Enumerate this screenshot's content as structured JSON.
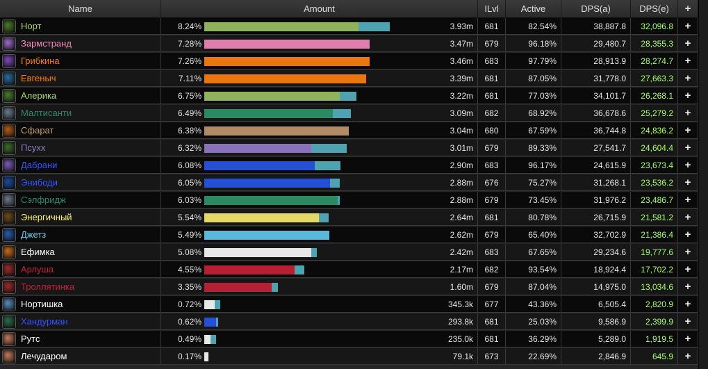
{
  "header": {
    "name": "Name",
    "amount": "Amount",
    "ilvl": "ILvl",
    "active": "Active",
    "dps_a": "DPS(a)",
    "dps_e": "DPS(e)",
    "plus": "+"
  },
  "rows": [
    {
      "name": "Норт",
      "name_color": "#abd473",
      "pct": "8.24%",
      "amount": "3.93m",
      "ilvl": "681",
      "active": "82.54%",
      "dps_a": "38,887.8",
      "dps_e": "32,096.8",
      "bar_main": 0.824,
      "bar_extra": 0.166,
      "bar_color": "#8fb25a",
      "icon": "hunter-icon",
      "icon_color": "#4a7a2a"
    },
    {
      "name": "Зармстранд",
      "name_color": "#f58cba",
      "pct": "7.28%",
      "amount": "3.47m",
      "ilvl": "679",
      "active": "96.18%",
      "dps_a": "29,480.7",
      "dps_e": "28,355.3",
      "bar_main": 0.883,
      "bar_extra": 0.0,
      "bar_color": "#e07fad",
      "icon": "paladin-icon",
      "icon_color": "#9a6ac8"
    },
    {
      "name": "Грибкина",
      "name_color": "#ff7d0a",
      "pct": "7.26%",
      "amount": "3.46m",
      "ilvl": "683",
      "active": "97.79%",
      "dps_a": "28,913.9",
      "dps_e": "28,274.7",
      "bar_main": 0.88,
      "bar_extra": 0.0,
      "bar_color": "#e9760f",
      "icon": "druid-icon",
      "icon_color": "#7a4ab8"
    },
    {
      "name": "Евгеныч",
      "name_color": "#ff7d0a",
      "pct": "7.11%",
      "amount": "3.39m",
      "ilvl": "681",
      "active": "87.05%",
      "dps_a": "31,778.0",
      "dps_e": "27,663.3",
      "bar_main": 0.863,
      "bar_extra": 0.0,
      "bar_color": "#e9760f",
      "icon": "moonkin-icon",
      "icon_color": "#2a6a9a"
    },
    {
      "name": "Алерика",
      "name_color": "#abd473",
      "pct": "6.75%",
      "amount": "3.22m",
      "ilvl": "681",
      "active": "77.03%",
      "dps_a": "34,101.7",
      "dps_e": "26,268.1",
      "bar_main": 0.724,
      "bar_extra": 0.09,
      "bar_color": "#8fb25a",
      "icon": "hunter-icon",
      "icon_color": "#4a7a2a"
    },
    {
      "name": "Малтисанти",
      "name_color": "#2e8b6e",
      "pct": "6.49%",
      "amount": "3.09m",
      "ilvl": "682",
      "active": "68.92%",
      "dps_a": "36,678.6",
      "dps_e": "25,279.2",
      "bar_main": 0.686,
      "bar_extra": 0.095,
      "bar_color": "#2a8a64",
      "icon": "wolf-icon",
      "icon_color": "#6a7a8a"
    },
    {
      "name": "Сфарат",
      "name_color": "#c79c6e",
      "pct": "6.38%",
      "amount": "3.04m",
      "ilvl": "680",
      "active": "67.59%",
      "dps_a": "36,744.8",
      "dps_e": "24,836.2",
      "bar_main": 0.77,
      "bar_extra": 0.0,
      "bar_color": "#b08c66",
      "icon": "warrior-icon",
      "icon_color": "#b05a1a"
    },
    {
      "name": "Псухх",
      "name_color": "#9482c9",
      "pct": "6.32%",
      "amount": "3.01m",
      "ilvl": "679",
      "active": "89.33%",
      "dps_a": "27,541.7",
      "dps_e": "24,604.4",
      "bar_main": 0.57,
      "bar_extra": 0.19,
      "bar_color": "#8a72bb",
      "icon": "warlock-icon",
      "icon_color": "#3a6a2a"
    },
    {
      "name": "Дабрани",
      "name_color": "#3355ff",
      "pct": "6.08%",
      "amount": "2.90m",
      "ilvl": "683",
      "active": "96.17%",
      "dps_a": "24,615.9",
      "dps_e": "23,673.4",
      "bar_main": 0.59,
      "bar_extra": 0.137,
      "bar_color": "#2450d8",
      "icon": "shaman-icon",
      "icon_color": "#7a5ab8"
    },
    {
      "name": "Энибоди",
      "name_color": "#3355ff",
      "pct": "6.05%",
      "amount": "2.88m",
      "ilvl": "676",
      "active": "75.27%",
      "dps_a": "31,268.1",
      "dps_e": "23,536.2",
      "bar_main": 0.67,
      "bar_extra": 0.05,
      "bar_color": "#2450d8",
      "icon": "lightning-icon",
      "icon_color": "#1a4a9a"
    },
    {
      "name": "Сэлфридж",
      "name_color": "#2e8b6e",
      "pct": "6.03%",
      "amount": "2.88m",
      "ilvl": "679",
      "active": "73.45%",
      "dps_a": "31,976.2",
      "dps_e": "23,486.7",
      "bar_main": 0.71,
      "bar_extra": 0.01,
      "bar_color": "#2a8a64",
      "icon": "wolf-icon",
      "icon_color": "#6a7a8a"
    },
    {
      "name": "Энергичный",
      "name_color": "#fff569",
      "pct": "5.54%",
      "amount": "2.64m",
      "ilvl": "681",
      "active": "80.78%",
      "dps_a": "26,715.9",
      "dps_e": "21,581.2",
      "bar_main": 0.61,
      "bar_extra": 0.05,
      "bar_color": "#e5d966",
      "icon": "rogue-icon",
      "icon_color": "#6a4a1a"
    },
    {
      "name": "Джетз",
      "name_color": "#69ccf0",
      "pct": "5.49%",
      "amount": "2.62m",
      "ilvl": "679",
      "active": "65.40%",
      "dps_a": "32,702.9",
      "dps_e": "21,386.4",
      "bar_main": 0.666,
      "bar_extra": 0.0,
      "bar_color": "#5bb8d8",
      "icon": "mage-icon",
      "icon_color": "#2a5aa8"
    },
    {
      "name": "Ефимка",
      "name_color": "#ffffff",
      "pct": "5.08%",
      "amount": "2.42m",
      "ilvl": "683",
      "active": "67.65%",
      "dps_a": "29,234.6",
      "dps_e": "19,777.6",
      "bar_main": 0.57,
      "bar_extra": 0.03,
      "bar_color": "#e8e8e8",
      "icon": "priest-icon",
      "icon_color": "#c06a1a"
    },
    {
      "name": "Арлуша",
      "name_color": "#c41f3b",
      "pct": "4.55%",
      "amount": "2.17m",
      "ilvl": "682",
      "active": "93.54%",
      "dps_a": "18,924.4",
      "dps_e": "17,702.2",
      "bar_main": 0.48,
      "bar_extra": 0.05,
      "bar_color": "#b52034",
      "icon": "deathknight-icon",
      "icon_color": "#9a2a2a"
    },
    {
      "name": "Троллятинка",
      "name_color": "#c41f3b",
      "pct": "3.35%",
      "amount": "1.60m",
      "ilvl": "679",
      "active": "87.04%",
      "dps_a": "14,975.0",
      "dps_e": "13,034.6",
      "bar_main": 0.36,
      "bar_extra": 0.035,
      "bar_color": "#b52034",
      "icon": "deathknight-icon",
      "icon_color": "#9a2a2a"
    },
    {
      "name": "Нортишка",
      "name_color": "#ffffff",
      "pct": "0.72%",
      "amount": "345.3k",
      "ilvl": "677",
      "active": "43.36%",
      "dps_a": "6,505.4",
      "dps_e": "2,820.9",
      "bar_main": 0.056,
      "bar_extra": 0.03,
      "bar_color": "#e8e8e8",
      "icon": "priest-icon",
      "icon_color": "#5a8ab8"
    },
    {
      "name": "Хандурман",
      "name_color": "#3355ff",
      "pct": "0.62%",
      "amount": "293.8k",
      "ilvl": "681",
      "active": "25.03%",
      "dps_a": "9,586.9",
      "dps_e": "2,399.9",
      "bar_main": 0.064,
      "bar_extra": 0.01,
      "bar_color": "#2450d8",
      "icon": "shaman-icon",
      "icon_color": "#2a6a4a"
    },
    {
      "name": "Рутс",
      "name_color": "#ffffff",
      "pct": "0.49%",
      "amount": "235.0k",
      "ilvl": "681",
      "active": "36.29%",
      "dps_a": "5,289.0",
      "dps_e": "1,919.5",
      "bar_main": 0.032,
      "bar_extra": 0.03,
      "bar_color": "#e8e8e8",
      "icon": "priest-icon",
      "icon_color": "#c07a5a"
    },
    {
      "name": "Лечударом",
      "name_color": "#ffffff",
      "pct": "0.17%",
      "amount": "79.1k",
      "ilvl": "673",
      "active": "22.69%",
      "dps_a": "2,846.9",
      "dps_e": "645.9",
      "bar_main": 0.022,
      "bar_extra": 0.0,
      "bar_color": "#e8e8e8",
      "icon": "priest-icon",
      "icon_color": "#c07a5a"
    }
  ]
}
